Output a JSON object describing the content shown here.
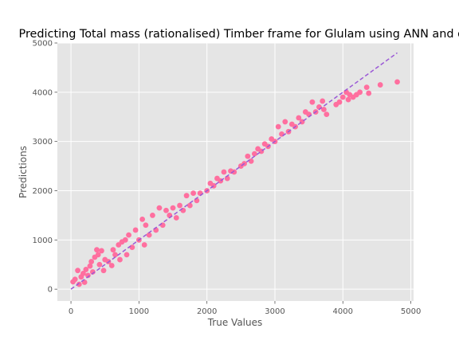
{
  "chart_data": {
    "type": "scatter",
    "title": "Predicting Total mass (rationalised) Timber  frame for Glulam using ANN and derived",
    "xlabel": "True Values",
    "ylabel": "Predictions",
    "xlim": [
      -200,
      5040
    ],
    "ylim": [
      -240,
      5000
    ],
    "xticks": [
      0,
      1000,
      2000,
      3000,
      4000,
      5000
    ],
    "yticks": [
      0,
      1000,
      2000,
      3000,
      4000,
      5000
    ],
    "grid": true,
    "background": "#e5e5e5",
    "grid_color": "#ffffff",
    "point_color": "#ff6f9f",
    "reference_line": {
      "x": [
        0,
        4800
      ],
      "y": [
        0,
        4800
      ],
      "color": "#9b59d6",
      "style": "dashed"
    },
    "series": [
      {
        "points": [
          [
            30,
            150
          ],
          [
            60,
            200
          ],
          [
            100,
            380
          ],
          [
            120,
            100
          ],
          [
            150,
            250
          ],
          [
            180,
            320
          ],
          [
            200,
            140
          ],
          [
            220,
            400
          ],
          [
            250,
            280
          ],
          [
            280,
            470
          ],
          [
            300,
            560
          ],
          [
            320,
            350
          ],
          [
            350,
            650
          ],
          [
            380,
            800
          ],
          [
            400,
            700
          ],
          [
            420,
            500
          ],
          [
            450,
            780
          ],
          [
            480,
            380
          ],
          [
            500,
            600
          ],
          [
            550,
            560
          ],
          [
            600,
            480
          ],
          [
            620,
            800
          ],
          [
            650,
            700
          ],
          [
            700,
            900
          ],
          [
            720,
            600
          ],
          [
            750,
            960
          ],
          [
            800,
            1000
          ],
          [
            820,
            700
          ],
          [
            850,
            1100
          ],
          [
            900,
            850
          ],
          [
            950,
            1200
          ],
          [
            1000,
            1000
          ],
          [
            1050,
            1420
          ],
          [
            1080,
            900
          ],
          [
            1100,
            1300
          ],
          [
            1150,
            1100
          ],
          [
            1200,
            1500
          ],
          [
            1250,
            1200
          ],
          [
            1300,
            1650
          ],
          [
            1350,
            1300
          ],
          [
            1400,
            1600
          ],
          [
            1450,
            1500
          ],
          [
            1500,
            1650
          ],
          [
            1550,
            1450
          ],
          [
            1600,
            1700
          ],
          [
            1650,
            1600
          ],
          [
            1700,
            1900
          ],
          [
            1750,
            1700
          ],
          [
            1800,
            1950
          ],
          [
            1850,
            1800
          ],
          [
            1900,
            1950
          ],
          [
            2000,
            2000
          ],
          [
            2050,
            2150
          ],
          [
            2100,
            2100
          ],
          [
            2150,
            2250
          ],
          [
            2200,
            2200
          ],
          [
            2250,
            2380
          ],
          [
            2300,
            2250
          ],
          [
            2350,
            2400
          ],
          [
            2400,
            2380
          ],
          [
            2500,
            2500
          ],
          [
            2550,
            2550
          ],
          [
            2600,
            2700
          ],
          [
            2650,
            2600
          ],
          [
            2700,
            2750
          ],
          [
            2750,
            2850
          ],
          [
            2800,
            2800
          ],
          [
            2850,
            2950
          ],
          [
            2900,
            2900
          ],
          [
            2950,
            3050
          ],
          [
            3000,
            3000
          ],
          [
            3050,
            3300
          ],
          [
            3100,
            3150
          ],
          [
            3150,
            3400
          ],
          [
            3200,
            3200
          ],
          [
            3250,
            3350
          ],
          [
            3300,
            3300
          ],
          [
            3350,
            3480
          ],
          [
            3400,
            3400
          ],
          [
            3450,
            3600
          ],
          [
            3500,
            3550
          ],
          [
            3550,
            3800
          ],
          [
            3600,
            3600
          ],
          [
            3650,
            3700
          ],
          [
            3700,
            3820
          ],
          [
            3720,
            3650
          ],
          [
            3760,
            3550
          ],
          [
            3900,
            3750
          ],
          [
            3950,
            3800
          ],
          [
            4000,
            3900
          ],
          [
            4050,
            4000
          ],
          [
            4080,
            3850
          ],
          [
            4100,
            3950
          ],
          [
            4150,
            3900
          ],
          [
            4200,
            3950
          ],
          [
            4250,
            4000
          ],
          [
            4350,
            4100
          ],
          [
            4380,
            3980
          ],
          [
            4550,
            4150
          ],
          [
            4800,
            4210
          ]
        ]
      }
    ]
  }
}
